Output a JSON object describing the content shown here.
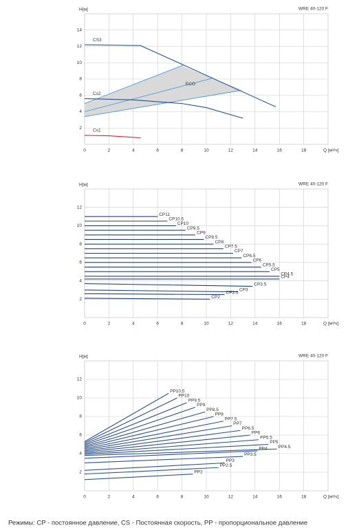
{
  "chart_data": [
    {
      "type": "line",
      "title": "WRE 40-120 F",
      "ylabel": "H[м]",
      "xlabel": "Q [м³/ч]",
      "xlim": [
        0,
        20
      ],
      "ylim": [
        0,
        16
      ],
      "xticks": [
        0,
        2,
        4,
        6,
        8,
        10,
        12,
        14,
        16,
        18
      ],
      "yticks": [
        2,
        4,
        6,
        8,
        10,
        12,
        14
      ],
      "grid": true,
      "series_labels": "start",
      "region": {
        "label": "ECO",
        "color": "#d9d9d9",
        "x": [
          0,
          8,
          13,
          0
        ],
        "values": [
          5,
          9.6,
          6.6,
          3.4
        ],
        "label_x": 8.3,
        "label_y": 7.4,
        "lines": [
          {
            "color": "#4a9ad8",
            "x": [
              0,
              8.1
            ],
            "values": [
              5,
              9.7
            ]
          },
          {
            "color": "#4a9ad8",
            "x": [
              0,
              10.5
            ],
            "values": [
              4,
              8.1
            ]
          },
          {
            "color": "#4a9ad8",
            "x": [
              0,
              12.8
            ],
            "values": [
              3.4,
              6.6
            ]
          }
        ]
      },
      "series": [
        {
          "name": "CS3",
          "color": "#2a5a9a",
          "x": [
            0,
            4.6,
            15.7
          ],
          "values": [
            12.2,
            12.1,
            4.6
          ]
        },
        {
          "name": "Cs2",
          "color": "#24508e",
          "x": [
            0,
            4,
            8,
            10,
            13
          ],
          "values": [
            5.6,
            5.45,
            5.0,
            4.5,
            3.2
          ]
        },
        {
          "name": "Cs1",
          "color": "#d42020",
          "x": [
            0,
            2,
            4.6
          ],
          "values": [
            1.1,
            1.05,
            0.8
          ]
        }
      ]
    },
    {
      "type": "line",
      "title": "WRE 40-120 F",
      "ylabel": "H[м]",
      "xlabel": "Q [м³/ч]",
      "xlim": [
        0,
        20
      ],
      "ylim": [
        0,
        14
      ],
      "xticks": [
        0,
        2,
        4,
        6,
        8,
        10,
        12,
        14,
        16,
        18
      ],
      "yticks": [
        2,
        4,
        6,
        8,
        10,
        12
      ],
      "grid": true,
      "series_labels": "end",
      "series": [
        {
          "name": "CP11",
          "color": "#1f3f7a",
          "x": [
            0,
            6.0
          ],
          "values": [
            11,
            11
          ]
        },
        {
          "name": "CP10.5",
          "color": "#1f3f7a",
          "x": [
            0,
            6.8
          ],
          "values": [
            10.5,
            10.5
          ]
        },
        {
          "name": "CP10",
          "color": "#1f3f7a",
          "x": [
            0,
            7.5
          ],
          "values": [
            10,
            10
          ]
        },
        {
          "name": "CP9.5",
          "color": "#1f3f7a",
          "x": [
            0,
            8.3
          ],
          "values": [
            9.5,
            9.5
          ]
        },
        {
          "name": "CP9",
          "color": "#1f3f7a",
          "x": [
            0,
            9.1
          ],
          "values": [
            9,
            9
          ]
        },
        {
          "name": "CP8.5",
          "color": "#1f3f7a",
          "x": [
            0,
            9.8
          ],
          "values": [
            8.5,
            8.5
          ]
        },
        {
          "name": "CP8",
          "color": "#1f3f7a",
          "x": [
            0,
            10.6
          ],
          "values": [
            8,
            8
          ]
        },
        {
          "name": "CP7.5",
          "color": "#1f3f7a",
          "x": [
            0,
            11.4
          ],
          "values": [
            7.5,
            7.5
          ]
        },
        {
          "name": "CP7",
          "color": "#1f3f7a",
          "x": [
            0,
            12.2
          ],
          "values": [
            7,
            7
          ]
        },
        {
          "name": "CP6.5",
          "color": "#1f3f7a",
          "x": [
            0,
            12.9
          ],
          "values": [
            6.5,
            6.5
          ]
        },
        {
          "name": "CP6",
          "color": "#1f3f7a",
          "x": [
            0,
            13.7
          ],
          "values": [
            6,
            6
          ]
        },
        {
          "name": "CP5.5",
          "color": "#1f3f7a",
          "x": [
            0,
            14.5
          ],
          "values": [
            5.5,
            5.5
          ]
        },
        {
          "name": "CP5",
          "color": "#1f3f7a",
          "x": [
            0,
            15.2
          ],
          "values": [
            5,
            5
          ]
        },
        {
          "name": "CP4.5",
          "color": "#1f3f7a",
          "x": [
            0,
            16.0
          ],
          "values": [
            4.5,
            4.5
          ]
        },
        {
          "name": "CP4",
          "color": "#1f3f7a",
          "x": [
            0,
            16.0
          ],
          "values": [
            4.2,
            4.2
          ]
        },
        {
          "name": "CP3.5",
          "color": "#1f3f7a",
          "x": [
            0,
            13.8
          ],
          "values": [
            3.7,
            3.4
          ]
        },
        {
          "name": "CP3",
          "color": "#1f3f7a",
          "x": [
            0,
            12.6
          ],
          "values": [
            3.0,
            2.8
          ]
        },
        {
          "name": "CP2.5",
          "color": "#1f3f7a",
          "x": [
            0,
            11.5
          ],
          "values": [
            2.6,
            2.5
          ]
        },
        {
          "name": "CP2",
          "color": "#1f3f7a",
          "x": [
            0,
            10.3
          ],
          "values": [
            2.1,
            2.0
          ]
        }
      ]
    },
    {
      "type": "line",
      "title": "WRE 40-120 F",
      "ylabel": "H[м]",
      "xlabel": "Q [м³/ч]",
      "xlim": [
        0,
        20
      ],
      "ylim": [
        0,
        14
      ],
      "xticks": [
        0,
        2,
        4,
        6,
        8,
        10,
        12,
        14,
        16,
        18
      ],
      "yticks": [
        2,
        4,
        6,
        8,
        10,
        12
      ],
      "grid": true,
      "series_labels": "end",
      "series": [
        {
          "name": "PP10.5",
          "color": "#2a5090",
          "x": [
            0,
            6.9
          ],
          "values": [
            5.3,
            10.5
          ]
        },
        {
          "name": "PP10",
          "color": "#2a5090",
          "x": [
            0,
            7.6
          ],
          "values": [
            5.18,
            10
          ]
        },
        {
          "name": "PP9.5",
          "color": "#2a5090",
          "x": [
            0,
            8.4
          ],
          "values": [
            5.05,
            9.5
          ]
        },
        {
          "name": "PP9",
          "color": "#2a5090",
          "x": [
            0,
            9.1
          ],
          "values": [
            4.93,
            9
          ]
        },
        {
          "name": "PP8.5",
          "color": "#2a5090",
          "x": [
            0,
            9.9
          ],
          "values": [
            4.8,
            8.5
          ]
        },
        {
          "name": "PP8",
          "color": "#2a5090",
          "x": [
            0,
            10.6
          ],
          "values": [
            4.68,
            8
          ]
        },
        {
          "name": "PP7.5",
          "color": "#2a5090",
          "x": [
            0,
            11.4
          ],
          "values": [
            4.55,
            7.5
          ]
        },
        {
          "name": "PP7",
          "color": "#2a5090",
          "x": [
            0,
            12.1
          ],
          "values": [
            4.43,
            7
          ]
        },
        {
          "name": "PP6.5",
          "color": "#2a5090",
          "x": [
            0,
            12.8
          ],
          "values": [
            4.3,
            6.5
          ]
        },
        {
          "name": "PP6",
          "color": "#2a5090",
          "x": [
            0,
            13.6
          ],
          "values": [
            4.18,
            6
          ]
        },
        {
          "name": "PP5.5",
          "color": "#2a5090",
          "x": [
            0,
            14.3
          ],
          "values": [
            4.05,
            5.5
          ]
        },
        {
          "name": "PP5",
          "color": "#2a5090",
          "x": [
            0,
            15.1
          ],
          "values": [
            3.93,
            5
          ]
        },
        {
          "name": "PP4.5",
          "color": "#2a5090",
          "x": [
            0,
            15.8
          ],
          "values": [
            3.8,
            4.5
          ]
        },
        {
          "name": "PP4",
          "color": "#2a5090",
          "x": [
            0,
            14.2
          ],
          "values": [
            3.5,
            4.3
          ]
        },
        {
          "name": "PP3.5",
          "color": "#2a5090",
          "x": [
            0,
            13.0
          ],
          "values": [
            3.0,
            3.7
          ]
        },
        {
          "name": "PP3",
          "color": "#2a5090",
          "x": [
            0,
            11.5
          ],
          "values": [
            2.2,
            3.0
          ]
        },
        {
          "name": "PP2.5",
          "color": "#2a5090",
          "x": [
            0,
            11.0
          ],
          "values": [
            1.8,
            2.5
          ]
        },
        {
          "name": "PP2",
          "color": "#2a5090",
          "x": [
            0,
            8.9
          ],
          "values": [
            1.2,
            1.8
          ]
        }
      ]
    }
  ],
  "caption": "Режимы: CP - постоянное давление, CS - Постоянная скорость, PP - пропорциональное давление"
}
